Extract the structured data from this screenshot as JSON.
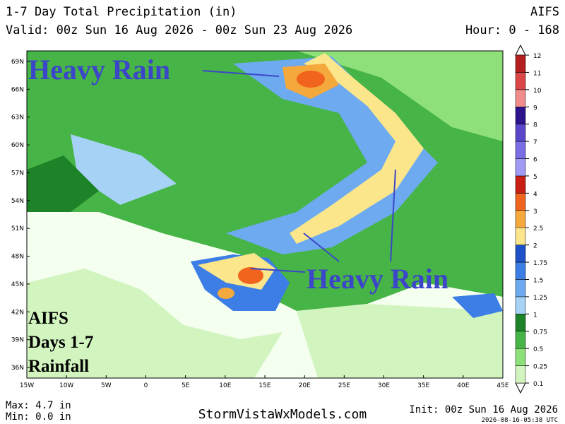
{
  "header": {
    "title": "1-7 Day Total Precipitation (in)",
    "model": "AIFS",
    "valid": "Valid: 00z Sun 16 Aug 2026 - 00z Sun 23 Aug 2026",
    "hour": "Hour: 0 - 168"
  },
  "map": {
    "lat_labels": [
      "69N",
      "66N",
      "63N",
      "60N",
      "57N",
      "54N",
      "51N",
      "48N",
      "45N",
      "42N",
      "39N",
      "36N"
    ],
    "lon_labels": [
      "15W",
      "10W",
      "5W",
      "0",
      "5E",
      "10E",
      "15E",
      "20E",
      "25E",
      "30E",
      "35E",
      "40E",
      "45E"
    ],
    "annotations": [
      "Heavy Rain",
      "Heavy Rain"
    ],
    "overlay": [
      "AIFS",
      "Days 1-7",
      "Rainfall"
    ]
  },
  "colorbar": {
    "levels": [
      0.1,
      0.25,
      0.5,
      0.75,
      1,
      1.25,
      1.5,
      1.75,
      2,
      2.5,
      3,
      4,
      5,
      6,
      7,
      8,
      9,
      10,
      11,
      12
    ],
    "colors": [
      "#d2f5c0",
      "#8ee07a",
      "#46b446",
      "#1e8228",
      "#a6d2f5",
      "#6eaaf0",
      "#3c7ee6",
      "#1e50c8",
      "#fbe68c",
      "#f5a83c",
      "#f0641e",
      "#c81e14",
      "#a09bf5",
      "#7a6ee6",
      "#5a46c8",
      "#2d148c",
      "#f08c8c",
      "#dc4646",
      "#b41e1e"
    ]
  },
  "footer": {
    "max": "Max: 4.7 in",
    "min": "Min: 0.0 in",
    "site": "StormVistaWxModels.com",
    "init": "Init: 00z Sun 16 Aug 2026",
    "timestamp": "2026-08-16-05:38 UTC"
  }
}
